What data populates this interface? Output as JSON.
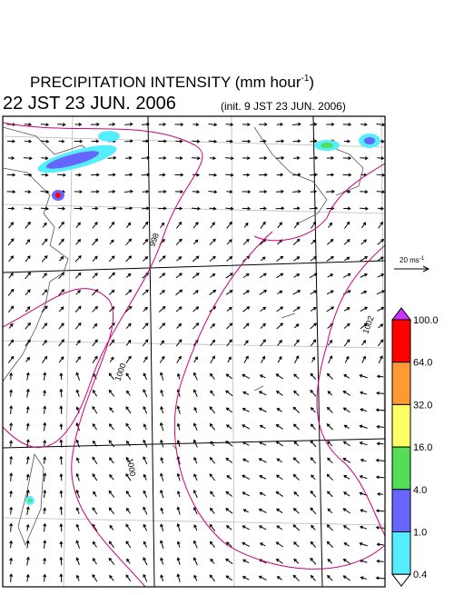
{
  "header": {
    "title": "PRECIPITATION INTENSITY (mm hour",
    "title_exponent": "-1",
    "title_close": ")",
    "valid_time": "22 JST 23 JUN. 2006",
    "init_time": "(init. 9 JST 23 JUN. 2006)"
  },
  "wind_scale": {
    "label": "20 ms",
    "exponent": "-1"
  },
  "contours": [
    {
      "label": "998"
    },
    {
      "label": "1000"
    },
    {
      "label": "1000"
    },
    {
      "label": "1002"
    }
  ],
  "colorbar": {
    "labels": [
      "100.0",
      "64.0",
      "32.0",
      "16.0",
      "4.0",
      "1.0",
      "0.4"
    ],
    "colors": [
      "#cc33ff",
      "#ff0000",
      "#ff9933",
      "#ffff66",
      "#55dd55",
      "#6666ff",
      "#55eeff",
      "#ffffff"
    ]
  }
}
